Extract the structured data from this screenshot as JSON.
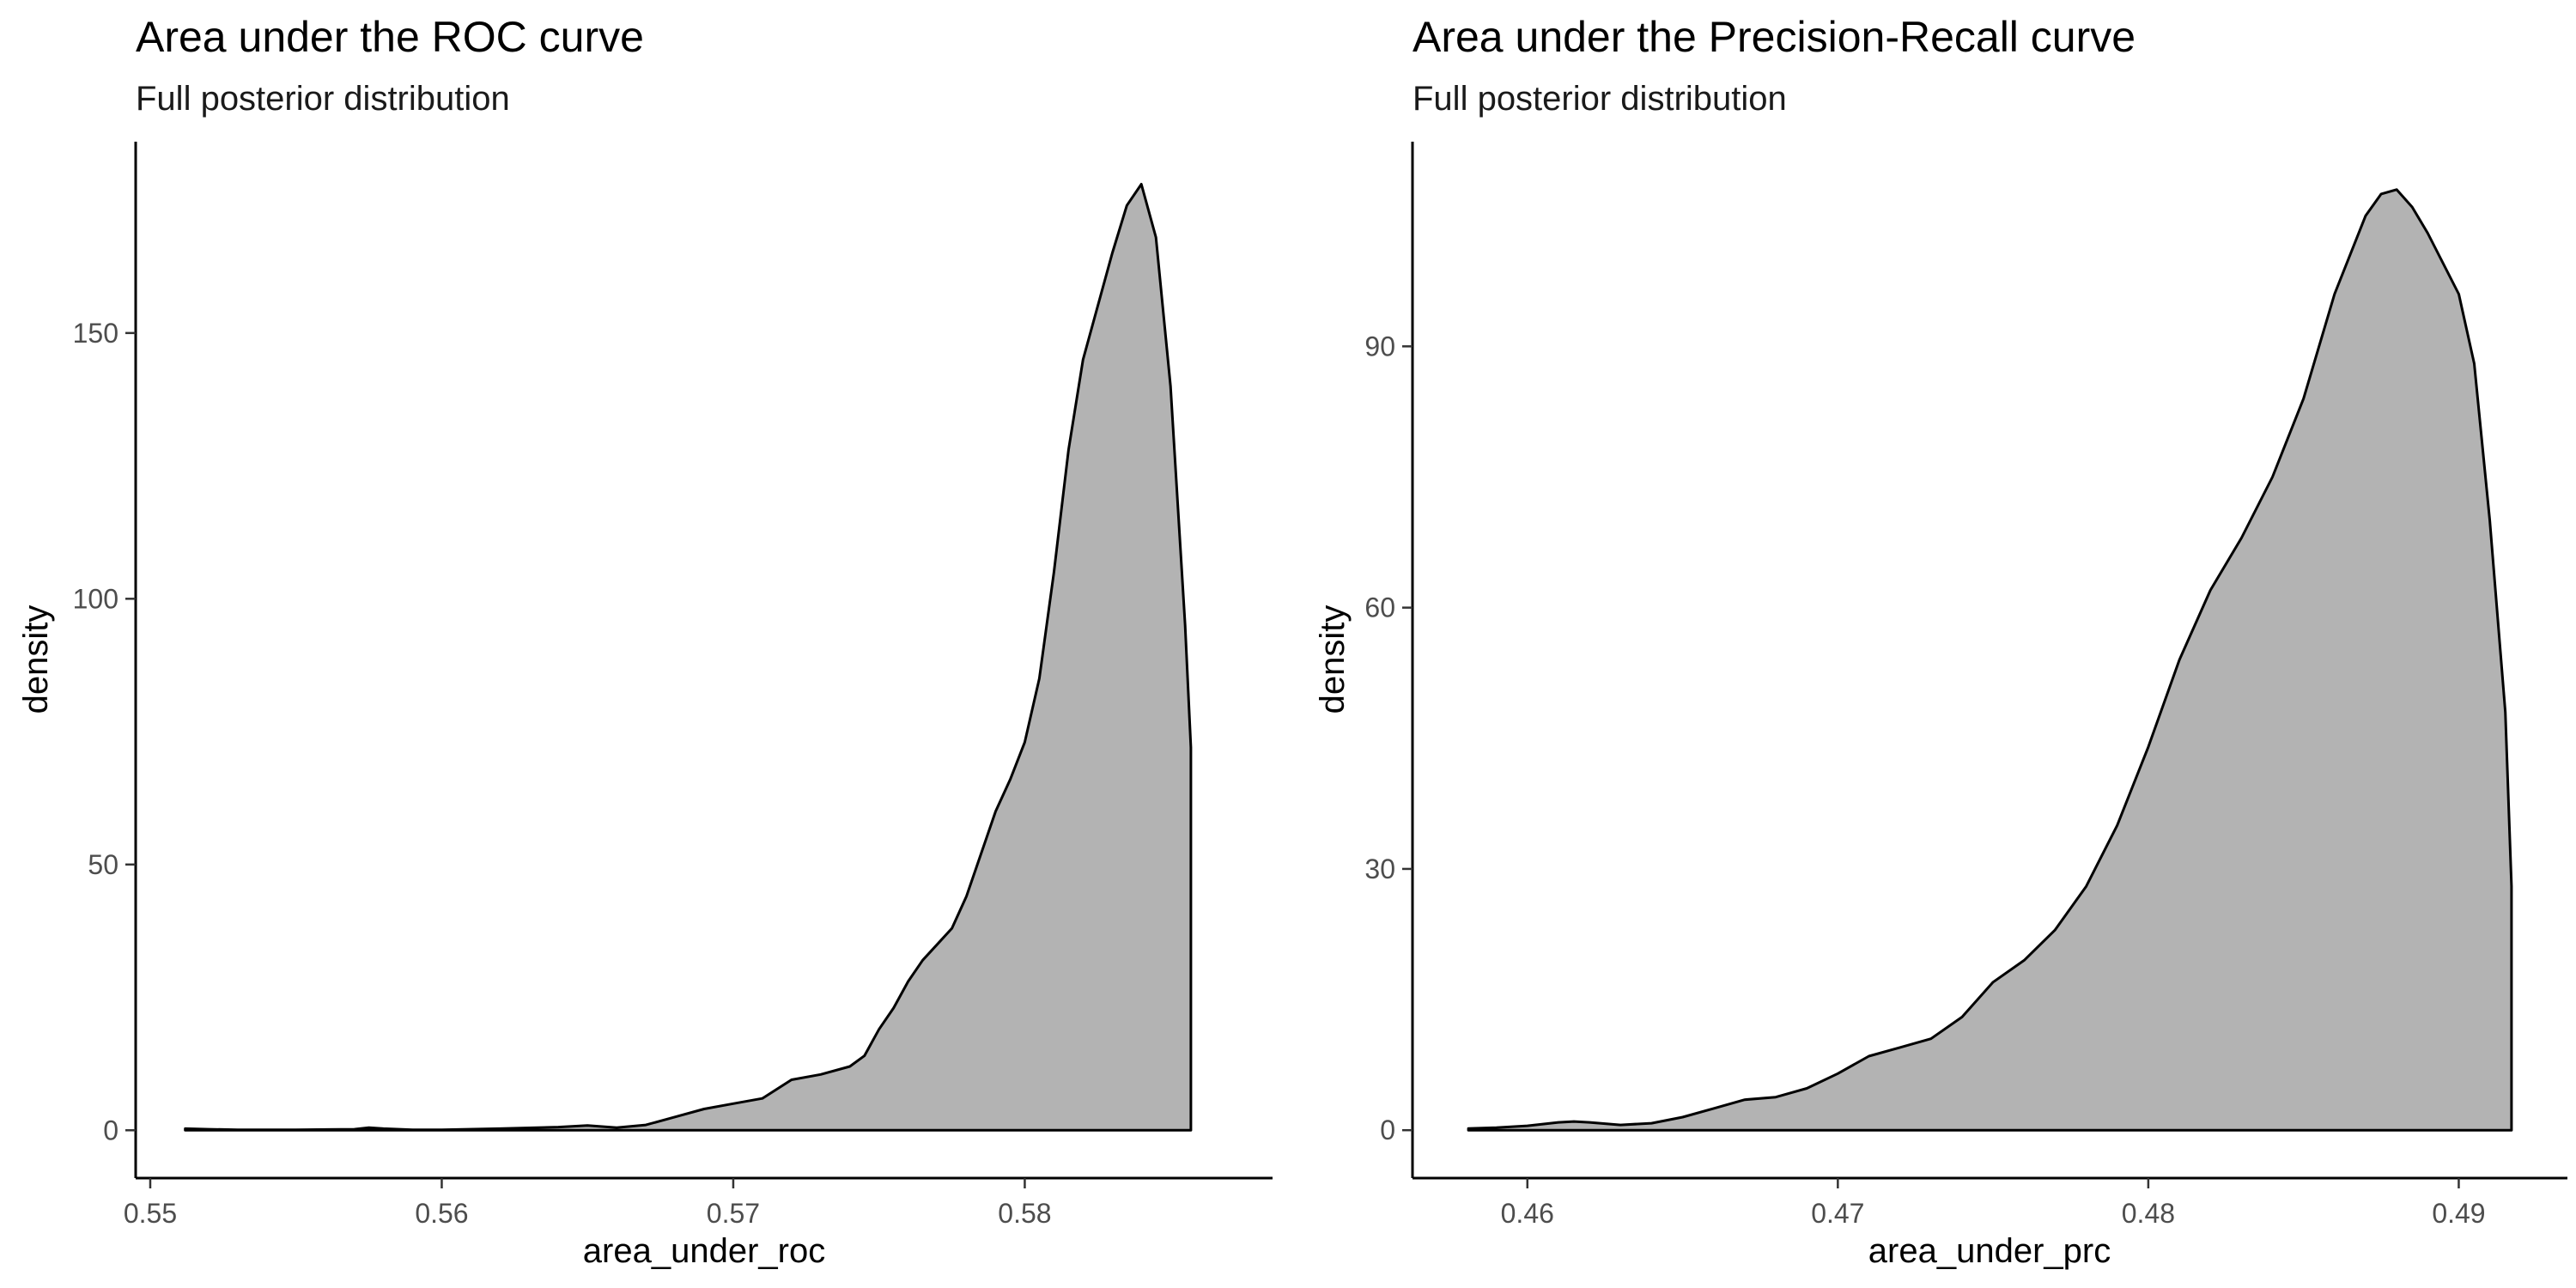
{
  "chart_data": [
    {
      "type": "area",
      "title": "Area under the ROC curve",
      "subtitle": "Full posterior distribution",
      "xlabel": "area_under_roc",
      "ylabel": "density",
      "xlim": [
        0.5495,
        0.5885
      ],
      "ylim": [
        -9,
        186
      ],
      "x_ticks": [
        0.55,
        0.56,
        0.57,
        0.58
      ],
      "x_tick_labels": [
        "0.55",
        "0.56",
        "0.57",
        "0.58"
      ],
      "y_ticks": [
        0,
        50,
        100,
        150
      ],
      "y_tick_labels": [
        "0",
        "50",
        "100",
        "150"
      ],
      "fill_color": "#b3b3b3",
      "line_color": "#000000",
      "grid": false,
      "x": [
        0.5512,
        0.552,
        0.553,
        0.555,
        0.557,
        0.5575,
        0.558,
        0.559,
        0.56,
        0.562,
        0.564,
        0.565,
        0.566,
        0.567,
        0.568,
        0.569,
        0.57,
        0.571,
        0.572,
        0.573,
        0.574,
        0.5745,
        0.575,
        0.5755,
        0.576,
        0.5765,
        0.577,
        0.5775,
        0.578,
        0.5785,
        0.579,
        0.5795,
        0.58,
        0.5805,
        0.581,
        0.5815,
        0.582,
        0.5825,
        0.583,
        0.5835,
        0.584,
        0.5845,
        0.585,
        0.5855,
        0.5857
      ],
      "y": [
        0.3,
        0.2,
        0.1,
        0.1,
        0.2,
        0.5,
        0.3,
        0.1,
        0.1,
        0.3,
        0.6,
        0.9,
        0.5,
        1,
        2.5,
        4,
        5,
        6,
        9.5,
        10.5,
        12,
        14,
        19,
        23,
        28,
        32,
        35,
        38,
        44,
        52,
        60,
        66,
        73,
        85,
        105,
        128,
        145,
        155,
        165,
        174,
        178,
        168,
        140,
        95,
        72
      ],
      "series": [
        {
          "values": [
            0.3,
            0.2,
            0.1,
            0.1,
            0.2,
            0.5,
            0.3,
            0.1,
            0.1,
            0.3,
            0.6,
            0.9,
            0.5,
            1,
            2.5,
            4,
            5,
            6,
            9.5,
            10.5,
            12,
            14,
            19,
            23,
            28,
            32,
            35,
            38,
            44,
            52,
            60,
            66,
            73,
            85,
            105,
            128,
            145,
            155,
            165,
            174,
            178,
            168,
            140,
            95,
            72
          ]
        }
      ]
    },
    {
      "type": "area",
      "title": "Area under the Precision-Recall curve",
      "subtitle": "Full posterior distribution",
      "xlabel": "area_under_prc",
      "ylabel": "density",
      "xlim": [
        0.4563,
        0.4935
      ],
      "ylim": [
        -5.5,
        113.5
      ],
      "x_ticks": [
        0.46,
        0.47,
        0.48,
        0.49
      ],
      "x_tick_labels": [
        "0.46",
        "0.47",
        "0.48",
        "0.49"
      ],
      "y_ticks": [
        0,
        30,
        60,
        90
      ],
      "y_tick_labels": [
        "0",
        "30",
        "60",
        "90"
      ],
      "fill_color": "#b3b3b3",
      "line_color": "#000000",
      "grid": false,
      "x": [
        0.4581,
        0.459,
        0.46,
        0.461,
        0.4615,
        0.462,
        0.463,
        0.464,
        0.465,
        0.466,
        0.467,
        0.468,
        0.469,
        0.47,
        0.471,
        0.472,
        0.473,
        0.474,
        0.475,
        0.476,
        0.477,
        0.478,
        0.479,
        0.48,
        0.481,
        0.482,
        0.483,
        0.484,
        0.485,
        0.486,
        0.487,
        0.4875,
        0.488,
        0.4885,
        0.489,
        0.4895,
        0.49,
        0.4905,
        0.491,
        0.4915,
        0.4917
      ],
      "y": [
        0.2,
        0.3,
        0.5,
        0.9,
        1.0,
        0.9,
        0.6,
        0.8,
        1.5,
        2.5,
        3.5,
        3.8,
        4.8,
        6.5,
        8.5,
        9.5,
        10.5,
        13,
        17,
        19.5,
        23,
        28,
        35,
        44,
        54,
        62,
        68,
        75,
        84,
        96,
        105,
        107.5,
        108,
        106,
        103,
        99.5,
        96,
        88,
        70,
        48,
        28
      ],
      "series": [
        {
          "values": [
            0.2,
            0.3,
            0.5,
            0.9,
            1.0,
            0.9,
            0.6,
            0.8,
            1.5,
            2.5,
            3.5,
            3.8,
            4.8,
            6.5,
            8.5,
            9.5,
            10.5,
            13,
            17,
            19.5,
            23,
            28,
            35,
            44,
            54,
            62,
            68,
            75,
            84,
            96,
            105,
            107.5,
            108,
            106,
            103,
            99.5,
            96,
            88,
            70,
            48,
            28
          ]
        }
      ]
    }
  ]
}
